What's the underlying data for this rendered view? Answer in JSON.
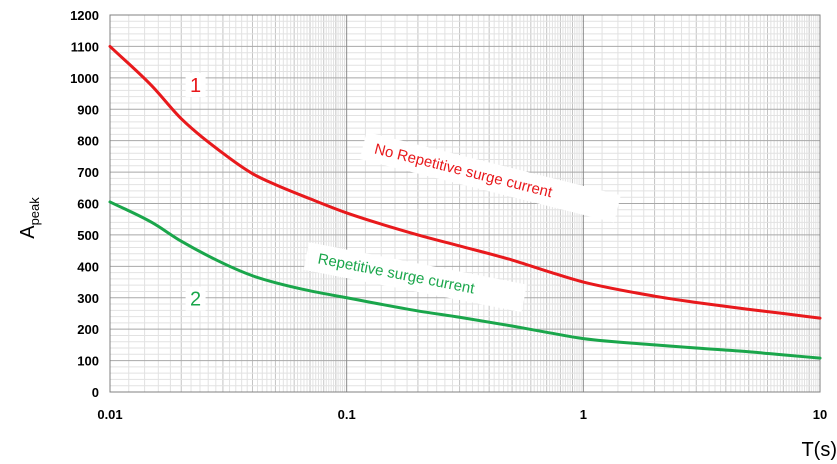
{
  "chart_data": {
    "type": "line",
    "title": "",
    "xlabel": "T(s)",
    "ylabel_main": "A",
    "ylabel_sub": "peak",
    "xscale": "log",
    "xlim": [
      0.01,
      10
    ],
    "ylim": [
      0,
      1200
    ],
    "grid": true,
    "x_ticks": [
      {
        "value": 0.01,
        "label": "0.01"
      },
      {
        "value": 0.1,
        "label": "0.1"
      },
      {
        "value": 1,
        "label": "1"
      },
      {
        "value": 10,
        "label": "10"
      }
    ],
    "y_ticks": [
      {
        "value": 0,
        "label": "0"
      },
      {
        "value": 100,
        "label": "100"
      },
      {
        "value": 200,
        "label": "200"
      },
      {
        "value": 300,
        "label": "300"
      },
      {
        "value": 400,
        "label": "400"
      },
      {
        "value": 500,
        "label": "500"
      },
      {
        "value": 600,
        "label": "600"
      },
      {
        "value": 700,
        "label": "700"
      },
      {
        "value": 800,
        "label": "800"
      },
      {
        "value": 900,
        "label": "900"
      },
      {
        "value": 1000,
        "label": "1000"
      },
      {
        "value": 1100,
        "label": "1100"
      },
      {
        "value": 1200,
        "label": "1200"
      }
    ],
    "series": [
      {
        "marker": "1",
        "annotation": "No Repetitive surge current",
        "color": "#e8191c",
        "x": [
          0.01,
          0.015,
          0.02,
          0.03,
          0.04,
          0.05,
          0.07,
          0.1,
          0.2,
          0.3,
          0.5,
          0.7,
          1,
          2,
          3,
          5,
          7,
          10
        ],
        "y": [
          1100,
          975,
          870,
          760,
          695,
          660,
          615,
          570,
          500,
          465,
          420,
          385,
          350,
          305,
          285,
          263,
          250,
          235
        ]
      },
      {
        "marker": "2",
        "annotation": "Repetitive surge current",
        "color": "#1aa64b",
        "x": [
          0.01,
          0.015,
          0.02,
          0.03,
          0.04,
          0.05,
          0.07,
          0.1,
          0.2,
          0.3,
          0.5,
          0.7,
          1,
          2,
          3,
          5,
          7,
          10
        ],
        "y": [
          605,
          540,
          480,
          410,
          370,
          348,
          322,
          300,
          258,
          238,
          210,
          190,
          170,
          150,
          140,
          128,
          118,
          108
        ]
      }
    ]
  }
}
